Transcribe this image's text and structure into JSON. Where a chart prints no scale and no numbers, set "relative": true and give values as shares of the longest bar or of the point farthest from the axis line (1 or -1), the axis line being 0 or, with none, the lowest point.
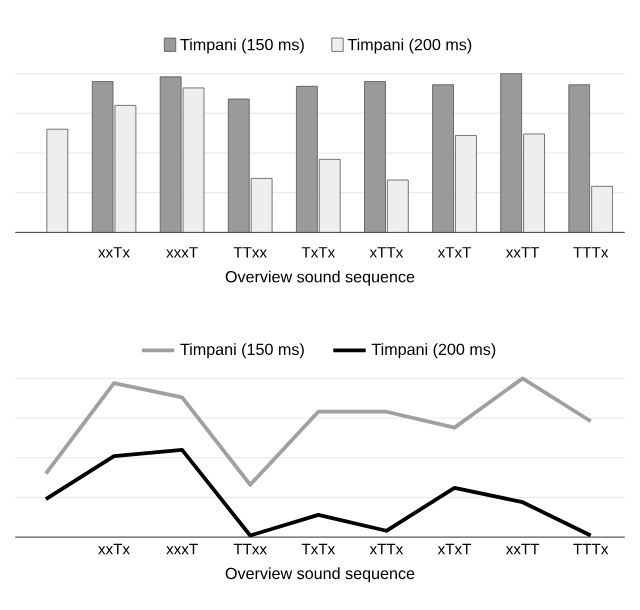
{
  "chart_data": [
    {
      "type": "bar",
      "relative": true,
      "xlabel": "Overview sound sequence",
      "legend": "top",
      "grid": "y",
      "categories": [
        null,
        "xxTx",
        "xxxT",
        "TTxx",
        "TxTx",
        "xTTx",
        "xTxT",
        "xxTT",
        "TTTx"
      ],
      "series": [
        {
          "name": "Timpani (150 ms)",
          "color": "#9a9a9a",
          "values": [
            null,
            0.95,
            0.98,
            0.84,
            0.92,
            0.95,
            0.93,
            1,
            0.93
          ]
        },
        {
          "name": "Timpani (200 ms)",
          "color": "#eeeeee",
          "values": [
            0.65,
            0.8,
            0.91,
            0.34,
            0.46,
            0.33,
            0.61,
            0.62,
            0.29
          ]
        }
      ]
    },
    {
      "type": "line",
      "relative": true,
      "xlabel": "Overview sound sequence",
      "legend": "top",
      "grid": "y",
      "categories": [
        null,
        "xxTx",
        "xxxT",
        "TTxx",
        "TxTx",
        "xTTx",
        "xTxT",
        "xxTT",
        "TTTx"
      ],
      "series": [
        {
          "name": "Timpani (150 ms)",
          "color": "#a0a0a0",
          "values": [
            0.4,
            0.97,
            0.88,
            0.33,
            0.79,
            0.79,
            0.69,
            1,
            0.73
          ]
        },
        {
          "name": "Timpani (200 ms)",
          "color": "#000000",
          "values": [
            0.24,
            0.51,
            0.55,
            0.01,
            0.14,
            0.04,
            0.31,
            0.22,
            0.01
          ]
        }
      ]
    }
  ]
}
